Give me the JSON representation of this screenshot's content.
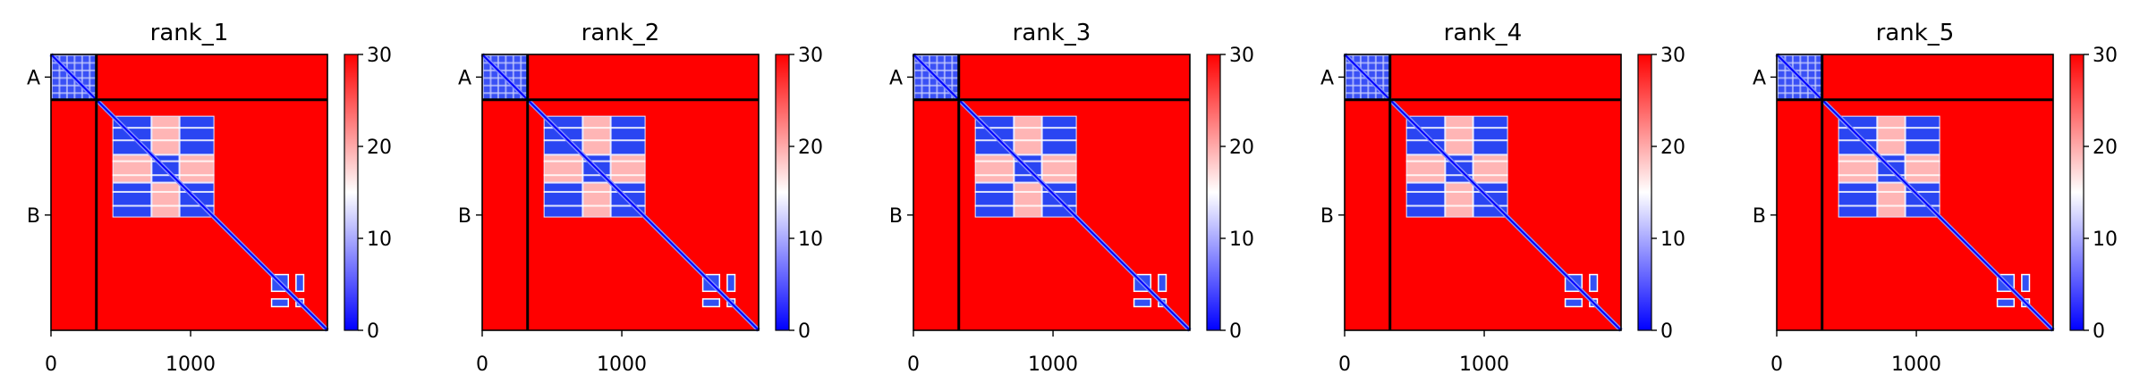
{
  "figure": {
    "colormap": "bwr",
    "colors": {
      "low": "#0000ff",
      "mid": "#ffffff",
      "high": "#ff0000",
      "frame": "#000000"
    }
  },
  "chart_data": [
    {
      "type": "heatmap",
      "title": "rank_1",
      "x_range": [
        0,
        1980
      ],
      "y_range": [
        0,
        1980
      ],
      "xticks": [
        0,
        1000
      ],
      "chain_labels": [
        "A",
        "B"
      ],
      "chain_breaks": [
        325
      ],
      "colorbar": {
        "vmin": 0,
        "vmax": 30,
        "ticks": [
          0,
          10,
          20,
          30
        ]
      }
    },
    {
      "type": "heatmap",
      "title": "rank_2",
      "x_range": [
        0,
        1980
      ],
      "y_range": [
        0,
        1980
      ],
      "xticks": [
        0,
        1000
      ],
      "chain_labels": [
        "A",
        "B"
      ],
      "chain_breaks": [
        325
      ],
      "colorbar": {
        "vmin": 0,
        "vmax": 30,
        "ticks": [
          0,
          10,
          20,
          30
        ]
      }
    },
    {
      "type": "heatmap",
      "title": "rank_3",
      "x_range": [
        0,
        1980
      ],
      "y_range": [
        0,
        1980
      ],
      "xticks": [
        0,
        1000
      ],
      "chain_labels": [
        "A",
        "B"
      ],
      "chain_breaks": [
        325
      ],
      "colorbar": {
        "vmin": 0,
        "vmax": 30,
        "ticks": [
          0,
          10,
          20,
          30
        ]
      }
    },
    {
      "type": "heatmap",
      "title": "rank_4",
      "x_range": [
        0,
        1980
      ],
      "y_range": [
        0,
        1980
      ],
      "xticks": [
        0,
        1000
      ],
      "chain_labels": [
        "A",
        "B"
      ],
      "chain_breaks": [
        325
      ],
      "colorbar": {
        "vmin": 0,
        "vmax": 30,
        "ticks": [
          0,
          10,
          20,
          30
        ]
      }
    },
    {
      "type": "heatmap",
      "title": "rank_5",
      "x_range": [
        0,
        1980
      ],
      "y_range": [
        0,
        1980
      ],
      "xticks": [
        0,
        1000
      ],
      "chain_labels": [
        "A",
        "B"
      ],
      "chain_breaks": [
        325
      ],
      "colorbar": {
        "vmin": 0,
        "vmax": 30,
        "ticks": [
          0,
          10,
          20,
          30
        ]
      }
    }
  ]
}
